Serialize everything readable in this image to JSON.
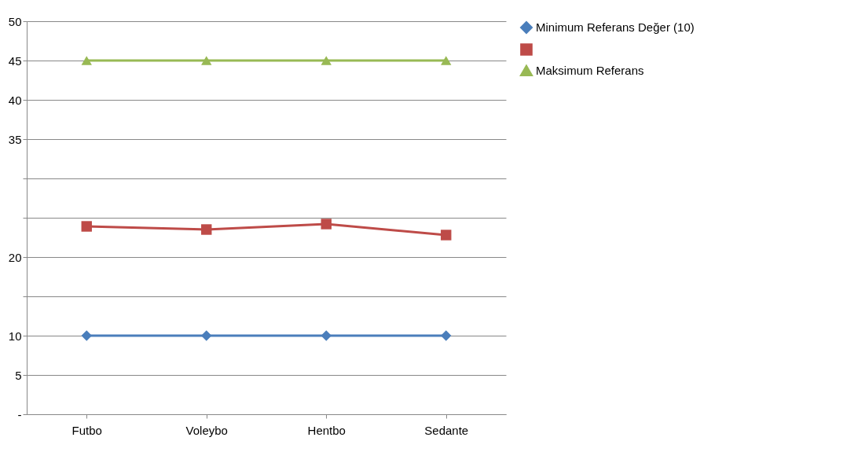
{
  "chart_data": {
    "type": "line",
    "categories": [
      "Futbo",
      "Voleybo",
      "Hentbo",
      "Sedante"
    ],
    "series": [
      {
        "name": "Minimum Referans Değer (10)",
        "color": "#4a7ebb",
        "marker": "diamond",
        "values": [
          10,
          10,
          10,
          10
        ]
      },
      {
        "name": null,
        "color": "#be4b48",
        "marker": "square",
        "values": [
          23.9,
          23.5,
          24.2,
          22.8
        ]
      },
      {
        "name": "Maksimum Referans",
        "color": "#98b954",
        "marker": "triangle",
        "values": [
          45,
          45,
          45,
          45
        ]
      }
    ],
    "ylim": [
      0,
      50
    ],
    "yticks": [
      {
        "value": 0,
        "label": "-"
      },
      5,
      10,
      {
        "value": 15,
        "label": null
      },
      20,
      {
        "value": 25,
        "label": null
      },
      {
        "value": 30,
        "label": null
      },
      35,
      40,
      45,
      50
    ],
    "grid": "y",
    "legend": "right",
    "line_style": "solid"
  }
}
